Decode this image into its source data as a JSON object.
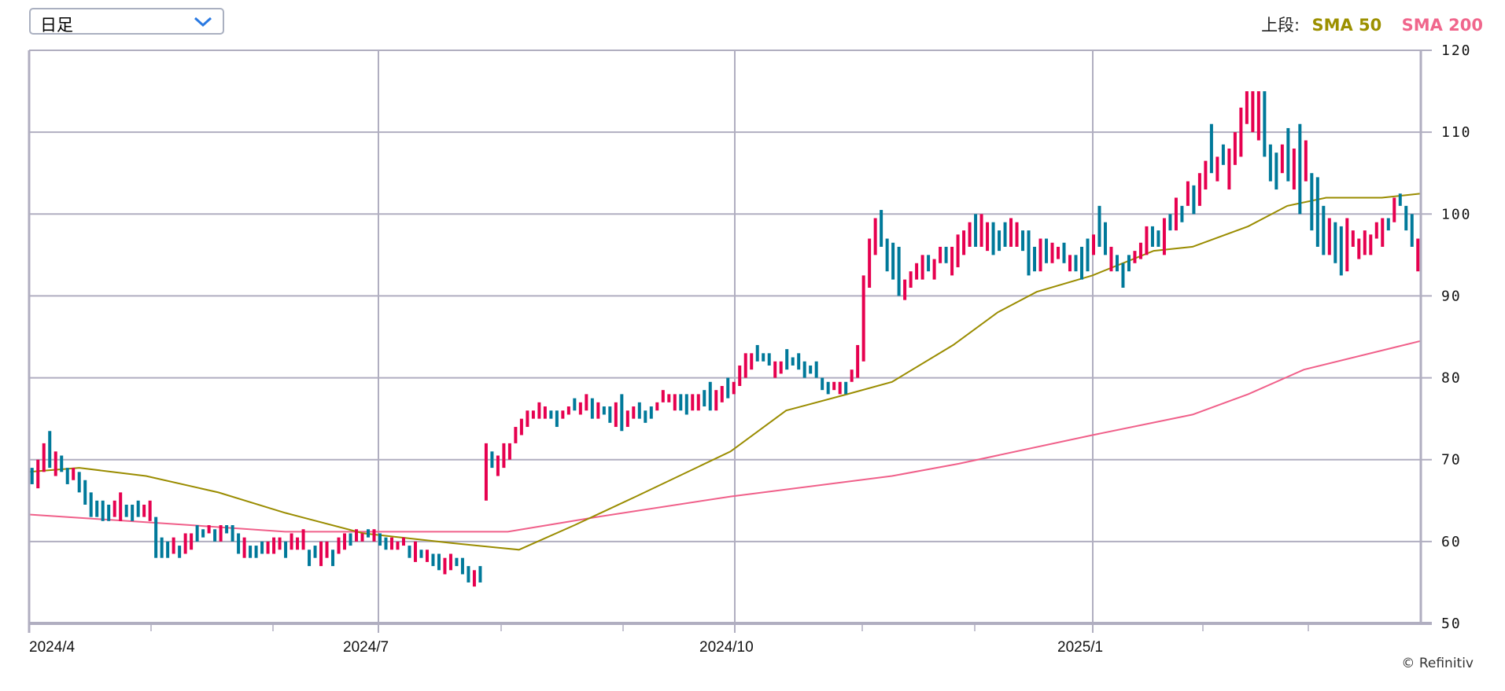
{
  "toolbar": {
    "period_select": "日足"
  },
  "legend": {
    "label": "上段:",
    "sma50": "SMA 50",
    "sma200": "SMA 200"
  },
  "credit": "© Refinitiv",
  "colors": {
    "up": "#e6004f",
    "down": "#00799a",
    "sma50": "#9a8c00",
    "sma200": "#f0608a",
    "grid": "#b0aec0"
  },
  "chart_data": {
    "type": "candlestick",
    "title": "",
    "ylim": [
      50,
      120
    ],
    "yticks": [
      120,
      110,
      100,
      90,
      80,
      70,
      60,
      50
    ],
    "xticks": [
      "2024/4",
      "2024/7",
      "2024/10",
      "2025/1"
    ],
    "sessions": 250,
    "bars": [
      [
        67,
        69,
        "d"
      ],
      [
        66.5,
        70,
        "u"
      ],
      [
        68.5,
        72,
        "u"
      ],
      [
        69,
        73.5,
        "d"
      ],
      [
        68,
        71,
        "u"
      ],
      [
        68.5,
        70.5,
        "d"
      ],
      [
        67,
        69,
        "d"
      ],
      [
        67.5,
        69,
        "u"
      ],
      [
        66,
        68.5,
        "d"
      ],
      [
        64.5,
        67.5,
        "d"
      ],
      [
        63,
        66,
        "d"
      ],
      [
        63,
        65,
        "d"
      ],
      [
        62.5,
        65,
        "d"
      ],
      [
        62.5,
        64.5,
        "d"
      ],
      [
        63,
        65,
        "u"
      ],
      [
        62.5,
        66,
        "u"
      ],
      [
        63,
        64.5,
        "d"
      ],
      [
        62.5,
        64.5,
        "d"
      ],
      [
        63,
        65,
        "d"
      ],
      [
        63,
        64.5,
        "u"
      ],
      [
        62.5,
        65,
        "u"
      ],
      [
        58,
        63,
        "d"
      ],
      [
        58,
        60.5,
        "d"
      ],
      [
        58,
        60,
        "d"
      ],
      [
        58.5,
        60.5,
        "u"
      ],
      [
        58,
        59.5,
        "d"
      ],
      [
        58.5,
        61,
        "u"
      ],
      [
        59,
        61,
        "u"
      ],
      [
        60,
        62,
        "d"
      ],
      [
        60.5,
        61.5,
        "d"
      ],
      [
        61,
        62,
        "u"
      ],
      [
        60,
        61.5,
        "d"
      ],
      [
        60,
        62,
        "u"
      ],
      [
        61,
        62,
        "d"
      ],
      [
        60,
        62,
        "d"
      ],
      [
        58.5,
        61,
        "d"
      ],
      [
        58,
        60.5,
        "u"
      ],
      [
        58,
        59.5,
        "d"
      ],
      [
        58,
        59.5,
        "d"
      ],
      [
        58.5,
        60,
        "d"
      ],
      [
        58.5,
        60,
        "u"
      ],
      [
        58.5,
        60.5,
        "u"
      ],
      [
        59,
        60.5,
        "u"
      ],
      [
        58,
        60,
        "d"
      ],
      [
        59,
        61,
        "u"
      ],
      [
        59,
        60.5,
        "u"
      ],
      [
        59,
        61.5,
        "u"
      ],
      [
        57,
        59,
        "d"
      ],
      [
        58,
        59.5,
        "d"
      ],
      [
        57,
        60,
        "u"
      ],
      [
        58,
        60,
        "u"
      ],
      [
        57,
        59,
        "d"
      ],
      [
        58.5,
        60.5,
        "u"
      ],
      [
        59,
        61,
        "u"
      ],
      [
        59.5,
        61,
        "d"
      ],
      [
        60,
        61.5,
        "u"
      ],
      [
        60,
        61,
        "u"
      ],
      [
        60.5,
        61.5,
        "d"
      ],
      [
        60,
        61.5,
        "u"
      ],
      [
        59.5,
        61,
        "d"
      ],
      [
        59,
        60.5,
        "d"
      ],
      [
        59,
        60.5,
        "u"
      ],
      [
        59,
        60,
        "u"
      ],
      [
        59.5,
        60.5,
        "u"
      ],
      [
        58,
        59.5,
        "d"
      ],
      [
        57.5,
        60,
        "u"
      ],
      [
        58,
        59,
        "d"
      ],
      [
        57.5,
        59,
        "u"
      ],
      [
        57,
        58.5,
        "d"
      ],
      [
        56.5,
        58.5,
        "d"
      ],
      [
        56,
        58,
        "u"
      ],
      [
        56.5,
        58.5,
        "u"
      ],
      [
        57,
        58,
        "d"
      ],
      [
        56,
        58,
        "d"
      ],
      [
        55,
        57,
        "d"
      ],
      [
        54.5,
        56.5,
        "u"
      ],
      [
        55,
        57,
        "d"
      ],
      [
        65,
        72,
        "u"
      ],
      [
        69,
        71,
        "d"
      ],
      [
        68,
        70.5,
        "u"
      ],
      [
        69,
        72,
        "u"
      ],
      [
        70,
        72,
        "u"
      ],
      [
        72,
        74,
        "u"
      ],
      [
        73,
        75,
        "u"
      ],
      [
        74,
        76,
        "u"
      ],
      [
        75,
        76,
        "u"
      ],
      [
        75,
        77,
        "u"
      ],
      [
        75,
        76.5,
        "u"
      ],
      [
        75,
        76,
        "d"
      ],
      [
        74,
        76,
        "d"
      ],
      [
        75,
        76,
        "u"
      ],
      [
        75.5,
        76.5,
        "u"
      ],
      [
        76,
        77.5,
        "d"
      ],
      [
        75.5,
        77,
        "u"
      ],
      [
        76,
        78,
        "u"
      ],
      [
        75,
        77.5,
        "d"
      ],
      [
        75,
        77,
        "u"
      ],
      [
        75.5,
        76.5,
        "d"
      ],
      [
        74.5,
        76.5,
        "d"
      ],
      [
        74,
        77,
        "u"
      ],
      [
        73.5,
        78,
        "d"
      ],
      [
        74,
        76,
        "u"
      ],
      [
        75,
        76.5,
        "u"
      ],
      [
        75,
        77,
        "d"
      ],
      [
        74.5,
        76,
        "d"
      ],
      [
        75,
        76.5,
        "d"
      ],
      [
        76,
        77,
        "u"
      ],
      [
        77,
        78.5,
        "u"
      ],
      [
        77,
        78,
        "u"
      ],
      [
        76,
        78,
        "u"
      ],
      [
        76,
        78,
        "d"
      ],
      [
        75.5,
        78,
        "d"
      ],
      [
        76,
        78,
        "u"
      ],
      [
        76,
        78,
        "u"
      ],
      [
        76.5,
        78.5,
        "d"
      ],
      [
        76,
        79.5,
        "d"
      ],
      [
        76,
        78.5,
        "u"
      ],
      [
        77,
        79,
        "u"
      ],
      [
        77.5,
        80,
        "d"
      ],
      [
        78,
        79.5,
        "u"
      ],
      [
        79,
        81.5,
        "u"
      ],
      [
        80,
        83,
        "u"
      ],
      [
        81,
        83,
        "u"
      ],
      [
        82,
        84,
        "d"
      ],
      [
        82,
        83,
        "d"
      ],
      [
        81.5,
        83,
        "d"
      ],
      [
        80,
        82,
        "u"
      ],
      [
        80.5,
        82,
        "u"
      ],
      [
        81,
        83.5,
        "d"
      ],
      [
        81.5,
        82.5,
        "d"
      ],
      [
        81,
        83,
        "d"
      ],
      [
        80,
        82,
        "d"
      ],
      [
        80.5,
        81.5,
        "d"
      ],
      [
        80,
        82,
        "d"
      ],
      [
        78.5,
        80,
        "d"
      ],
      [
        78,
        79.5,
        "d"
      ],
      [
        78.5,
        79.5,
        "u"
      ],
      [
        78,
        79.5,
        "u"
      ],
      [
        78,
        79.5,
        "d"
      ],
      [
        79.5,
        81,
        "u"
      ],
      [
        80,
        84,
        "u"
      ],
      [
        82,
        92.5,
        "u"
      ],
      [
        91,
        97,
        "u"
      ],
      [
        95,
        99.5,
        "u"
      ],
      [
        96,
        100.5,
        "d"
      ],
      [
        93,
        97,
        "d"
      ],
      [
        92,
        96.5,
        "d"
      ],
      [
        90,
        96,
        "d"
      ],
      [
        89.5,
        92,
        "u"
      ],
      [
        91,
        93,
        "u"
      ],
      [
        92,
        94,
        "u"
      ],
      [
        92,
        95,
        "u"
      ],
      [
        93,
        95,
        "d"
      ],
      [
        92,
        94.5,
        "u"
      ],
      [
        94,
        96,
        "u"
      ],
      [
        94,
        96,
        "d"
      ],
      [
        92.5,
        96,
        "u"
      ],
      [
        93.5,
        97.5,
        "u"
      ],
      [
        95,
        98,
        "u"
      ],
      [
        96,
        99,
        "u"
      ],
      [
        96,
        100,
        "d"
      ],
      [
        96,
        100,
        "u"
      ],
      [
        95.5,
        99,
        "u"
      ],
      [
        95,
        99,
        "d"
      ],
      [
        95.5,
        98,
        "d"
      ],
      [
        96,
        99,
        "d"
      ],
      [
        96,
        99.5,
        "u"
      ],
      [
        96,
        99,
        "u"
      ],
      [
        95.5,
        98,
        "d"
      ],
      [
        92.5,
        98,
        "d"
      ],
      [
        93,
        96,
        "d"
      ],
      [
        93,
        97,
        "u"
      ],
      [
        94,
        97,
        "d"
      ],
      [
        94,
        96.5,
        "u"
      ],
      [
        94.5,
        96,
        "u"
      ],
      [
        94,
        96.5,
        "d"
      ],
      [
        93,
        95,
        "u"
      ],
      [
        93,
        95,
        "d"
      ],
      [
        92,
        96,
        "d"
      ],
      [
        93,
        97,
        "d"
      ],
      [
        95,
        97.5,
        "u"
      ],
      [
        96,
        101,
        "d"
      ],
      [
        95,
        99,
        "d"
      ],
      [
        93,
        96,
        "u"
      ],
      [
        93,
        95,
        "d"
      ],
      [
        91,
        94,
        "d"
      ],
      [
        93,
        95,
        "d"
      ],
      [
        94,
        95.5,
        "u"
      ],
      [
        94.5,
        96.5,
        "u"
      ],
      [
        95,
        98.5,
        "u"
      ],
      [
        96,
        98.5,
        "d"
      ],
      [
        96,
        98,
        "d"
      ],
      [
        95,
        99.5,
        "u"
      ],
      [
        98,
        100,
        "d"
      ],
      [
        98,
        102,
        "u"
      ],
      [
        99,
        101,
        "d"
      ],
      [
        101,
        104,
        "u"
      ],
      [
        100,
        103.5,
        "d"
      ],
      [
        101,
        105,
        "u"
      ],
      [
        103,
        106.5,
        "u"
      ],
      [
        105,
        111,
        "d"
      ],
      [
        104,
        107,
        "u"
      ],
      [
        106,
        108.5,
        "d"
      ],
      [
        103,
        108,
        "u"
      ],
      [
        106,
        110,
        "u"
      ],
      [
        107,
        113,
        "u"
      ],
      [
        111,
        115,
        "u"
      ],
      [
        110,
        115,
        "u"
      ],
      [
        109,
        115,
        "u"
      ],
      [
        107,
        115,
        "d"
      ],
      [
        104,
        108.5,
        "d"
      ],
      [
        103,
        107.5,
        "d"
      ],
      [
        105,
        108.5,
        "u"
      ],
      [
        104,
        110.5,
        "d"
      ],
      [
        103,
        108,
        "u"
      ],
      [
        100,
        111,
        "d"
      ],
      [
        104,
        109,
        "u"
      ],
      [
        98,
        105,
        "d"
      ],
      [
        96,
        104.5,
        "d"
      ],
      [
        95,
        101,
        "d"
      ],
      [
        95,
        99.5,
        "u"
      ],
      [
        94,
        99,
        "d"
      ],
      [
        92.5,
        98.5,
        "d"
      ],
      [
        93,
        99.5,
        "u"
      ],
      [
        96,
        98,
        "u"
      ],
      [
        94.5,
        97,
        "u"
      ],
      [
        95,
        98,
        "u"
      ],
      [
        95,
        97.5,
        "u"
      ],
      [
        97,
        99,
        "u"
      ],
      [
        96,
        99.5,
        "u"
      ],
      [
        98,
        99.5,
        "d"
      ],
      [
        99,
        102,
        "u"
      ],
      [
        101,
        102.5,
        "d"
      ],
      [
        98,
        101,
        "d"
      ],
      [
        96,
        100,
        "d"
      ],
      [
        93,
        97,
        "u"
      ]
    ],
    "sma50": [
      [
        0,
        68.5
      ],
      [
        9,
        69
      ],
      [
        21,
        68
      ],
      [
        34,
        66
      ],
      [
        46,
        63.5
      ],
      [
        60,
        61
      ],
      [
        76,
        59.8
      ],
      [
        88,
        59
      ],
      [
        98,
        62
      ],
      [
        109,
        65.5
      ],
      [
        126,
        71
      ],
      [
        136,
        76
      ],
      [
        147,
        78
      ],
      [
        155,
        79.5
      ],
      [
        166,
        84
      ],
      [
        174,
        88
      ],
      [
        181,
        90.5
      ],
      [
        191,
        92.5
      ],
      [
        202,
        95.5
      ],
      [
        209,
        96
      ],
      [
        219,
        98.5
      ],
      [
        226,
        101
      ],
      [
        233,
        102
      ],
      [
        243,
        102
      ],
      [
        250,
        102.5
      ]
    ],
    "sma200": [
      [
        0,
        63.3
      ],
      [
        29,
        62
      ],
      [
        46,
        61.2
      ],
      [
        86,
        61.2
      ],
      [
        102,
        63
      ],
      [
        126,
        65.5
      ],
      [
        155,
        68
      ],
      [
        167,
        69.5
      ],
      [
        191,
        73
      ],
      [
        209,
        75.5
      ],
      [
        219,
        78
      ],
      [
        229,
        81
      ],
      [
        250,
        84.5
      ]
    ]
  }
}
